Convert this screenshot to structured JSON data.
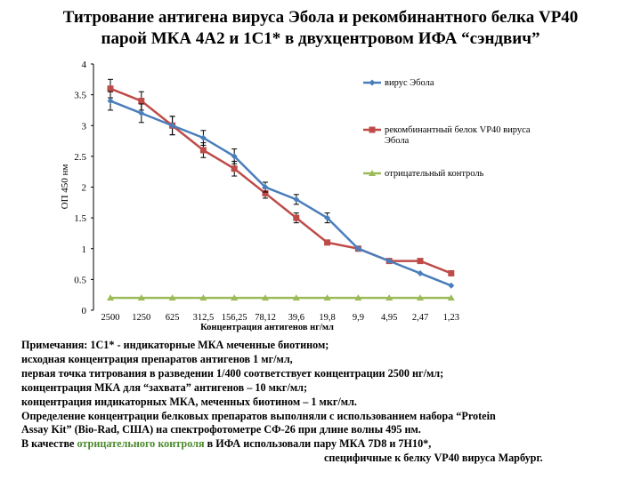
{
  "title": {
    "line1": "Титрование антигена вируса Эбола и рекомбинантного белка VP40",
    "line2": "парой МКА 4A2 и 1C1* в двухцентровом ИФА “сэндвич”"
  },
  "chart_data": {
    "type": "line",
    "ylabel": "ОП 450 нм",
    "xlabel": "Концентрация антигенов нг/мл",
    "ylim": [
      0,
      4
    ],
    "yticks": [
      "0",
      "0.5",
      "1",
      "1.5",
      "2",
      "2.5",
      "3",
      "3.5",
      "4"
    ],
    "categories": [
      "2500",
      "1250",
      "625",
      "312,5",
      "156,25",
      "78,12",
      "39,6",
      "19,8",
      "9,9",
      "4,95",
      "2,47",
      "1,23"
    ],
    "grid": false,
    "legend_position": "right",
    "series": [
      {
        "name": "вирус Эбола",
        "color": "#4a7ebb",
        "marker": "diamond",
        "values": [
          3.4,
          3.2,
          3.0,
          2.8,
          2.5,
          2.0,
          1.8,
          1.5,
          1.0,
          0.8,
          0.6,
          0.4
        ],
        "errors": [
          0.15,
          0.15,
          0.15,
          0.12,
          0.12,
          0.08,
          0.08,
          0.08,
          0,
          0,
          0,
          0
        ]
      },
      {
        "name": "рекомбинантный белок VP40 вируса Эбола",
        "color": "#be4b48",
        "marker": "square",
        "values": [
          3.6,
          3.4,
          3.0,
          2.6,
          2.3,
          1.9,
          1.5,
          1.1,
          1.0,
          0.8,
          0.8,
          0.6
        ],
        "errors": [
          0.15,
          0.15,
          0.15,
          0.12,
          0.12,
          0.08,
          0.08,
          0,
          0,
          0,
          0,
          0
        ]
      },
      {
        "name": "отрицательный контроль",
        "color": "#9bbb59",
        "marker": "triangle",
        "values": [
          0.2,
          0.2,
          0.2,
          0.2,
          0.2,
          0.2,
          0.2,
          0.2,
          0.2,
          0.2,
          0.2,
          0.2
        ],
        "errors": []
      }
    ]
  },
  "notes": {
    "line1": "Примечания: 1С1* - индикаторные МКА меченные биотином;",
    "line2": "исходная концентрация препаратов антигенов 1 мг/мл,",
    "line3": "первая точка титрования в разведении 1/400 соответствует концентрации 2500 нг/мл;",
    "line4": "концентрация МКА для “захвата” антигенов – 10 мкг/мл;",
    "line5": "концентрация индикаторных МКА, меченных биотином – 1 мкг/мл.",
    "line6": "Определение концентрации белковых препаратов выполняли с использованием набора “Protein",
    "line7": "Assay Kit” (Bio-Rad, США) на спектрофотометре СФ-26 при длине волны 495 нм.",
    "line8_a": "В качестве",
    "line8_b": "отрицательного контроля",
    "line8_c": "в ИФА  использовали пару МКА 7D8 и 7H10*,",
    "line9": "специфичные  к белку VP40 вируса Марбург."
  }
}
